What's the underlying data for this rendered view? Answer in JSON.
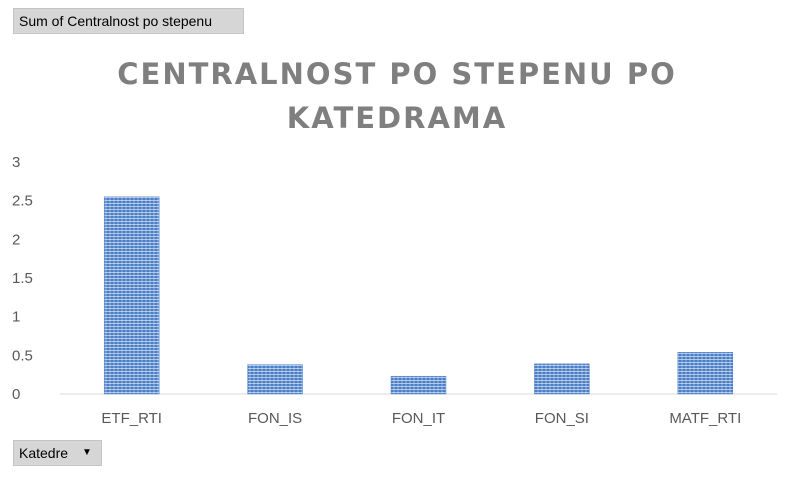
{
  "pivot": {
    "value_field_label": "Sum of Centralnost po stepenu",
    "axis_field_label": "Katedre",
    "axis_field_icon": "chevron-down-icon"
  },
  "chart_data": {
    "type": "bar",
    "title_lines": [
      "CENTRALNOST PO STEPENU PO",
      "KATEDRAMA"
    ],
    "categories": [
      "ETF_RTI",
      "FON_IS",
      "FON_IT",
      "FON_SI",
      "MATF_RTI"
    ],
    "values": [
      2.55,
      0.38,
      0.23,
      0.39,
      0.54
    ],
    "ylim": [
      0,
      3
    ],
    "yticks": [
      "0",
      "0.5",
      "1",
      "1.5",
      "2",
      "2.5",
      "3"
    ],
    "grid": false,
    "legend": "none",
    "bar_color": "#5b8bd0",
    "bar_pattern": "horizontal-stripes"
  }
}
